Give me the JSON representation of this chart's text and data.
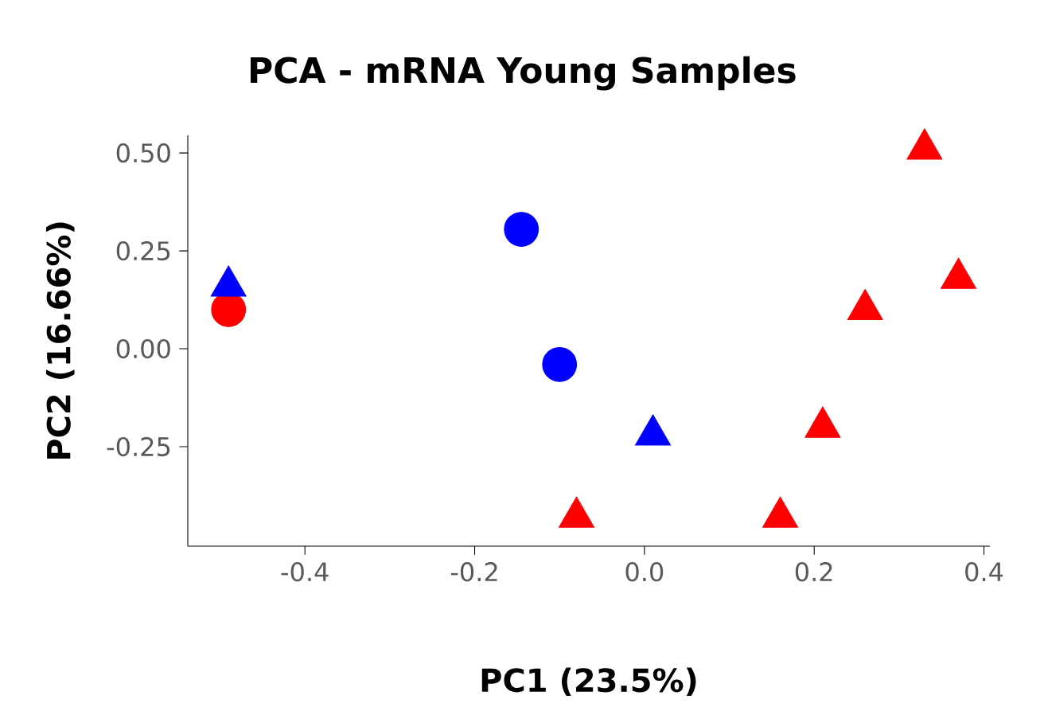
{
  "chart_data": {
    "type": "scatter",
    "title": "PCA - mRNA Young Samples",
    "xlabel": "PC1 (23.5%)",
    "ylabel": "PC2 (16.66%)",
    "xlim": [
      -0.538,
      0.407
    ],
    "ylim": [
      -0.504,
      0.545
    ],
    "xticks": [
      -0.4,
      -0.2,
      {
        "value": 0,
        "label": "0.0"
      },
      0.2,
      0.4
    ],
    "yticks": [
      {
        "value": 0.5,
        "label": "0.50"
      },
      {
        "value": 0.25,
        "label": "0.25"
      },
      {
        "value": 0.0,
        "label": "0.00"
      },
      {
        "value": -0.25,
        "label": "-0.25"
      }
    ],
    "grid": false,
    "series": [
      {
        "color": "#ff0000",
        "marker": "triangle",
        "x": [
          -0.08,
          0.16,
          0.21,
          0.26,
          0.33,
          0.37
        ],
        "values": [
          -0.43,
          -0.43,
          -0.2,
          0.1,
          0.51,
          0.18
        ]
      },
      {
        "color": "#ff0000",
        "marker": "circle",
        "x": [
          -0.49
        ],
        "values": [
          0.1
        ]
      },
      {
        "color": "#0000ff",
        "marker": "triangle",
        "x": [
          -0.49,
          0.01
        ],
        "values": [
          0.16,
          -0.22
        ]
      },
      {
        "color": "#0000ff",
        "marker": "circle",
        "x": [
          -0.145,
          -0.1
        ],
        "values": [
          0.305,
          -0.04
        ]
      }
    ]
  }
}
